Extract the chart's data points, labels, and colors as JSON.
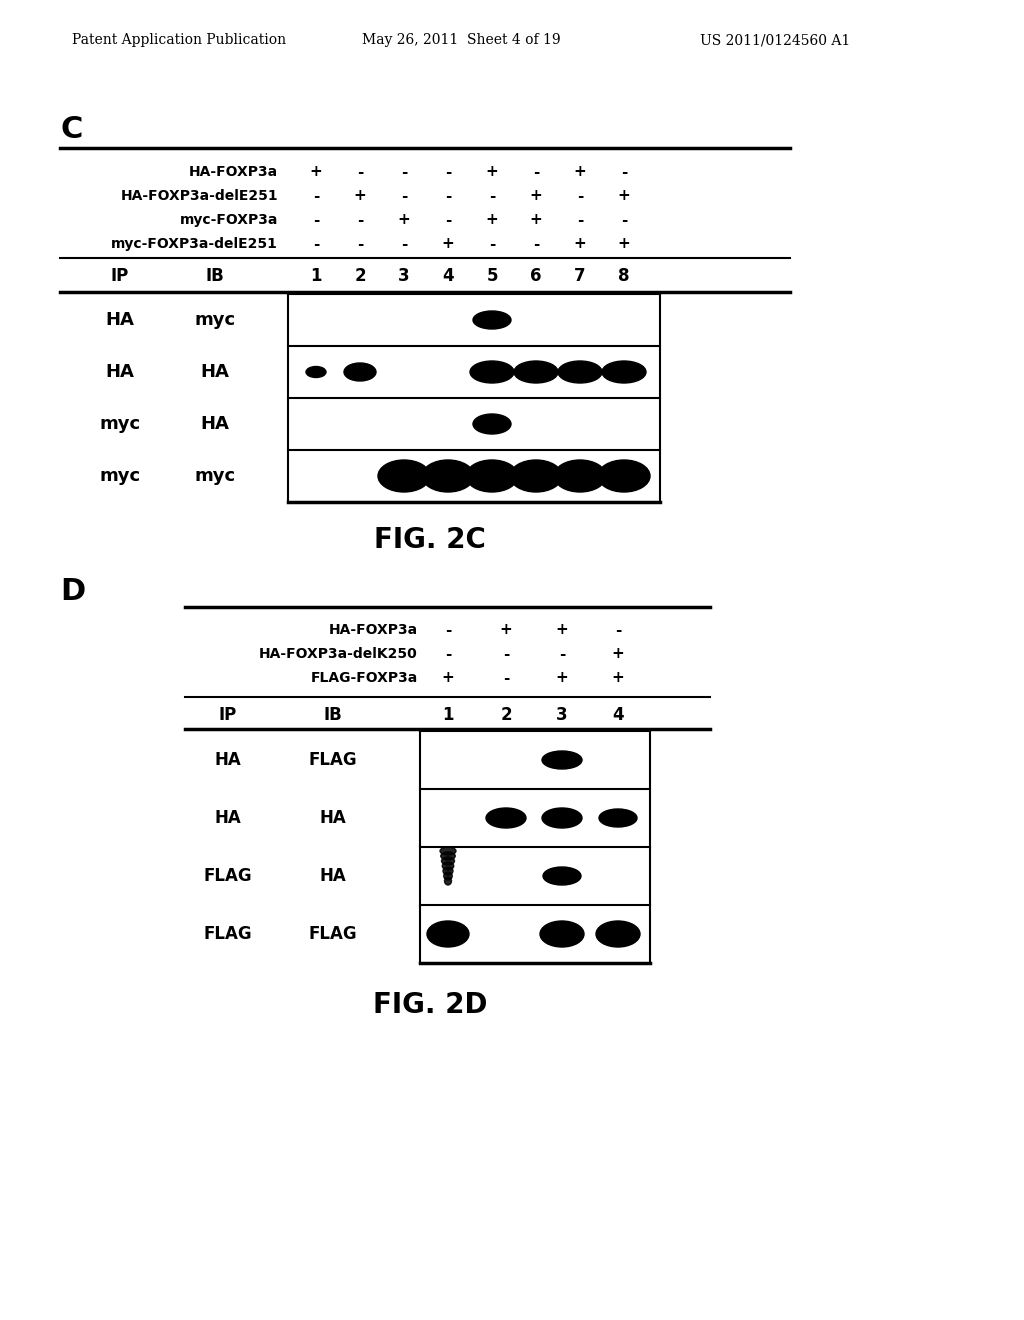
{
  "bg_color": "#ffffff",
  "header_left": "Patent Application Publication",
  "header_mid": "May 26, 2011  Sheet 4 of 19",
  "header_right": "US 2011/0124560 A1",
  "panel_C_label": "C",
  "panel_C_rows": [
    "HA-FOXP3a",
    "HA-FOXP3a-delE251",
    "myc-FOXP3a",
    "myc-FOXP3a-delE251"
  ],
  "panel_C_signs": [
    [
      "+",
      "-",
      "-",
      "-",
      "+",
      "-",
      "+",
      "-"
    ],
    [
      "-",
      "+",
      "-",
      "-",
      "-",
      "+",
      "-",
      "+"
    ],
    [
      "-",
      "-",
      "+",
      "-",
      "+",
      "+",
      "-",
      "-"
    ],
    [
      "-",
      "-",
      "-",
      "+",
      "-",
      "-",
      "+",
      "+"
    ]
  ],
  "panel_C_cols": [
    "1",
    "2",
    "3",
    "4",
    "5",
    "6",
    "7",
    "8"
  ],
  "panel_C_ip_ib": [
    [
      "HA",
      "myc"
    ],
    [
      "HA",
      "HA"
    ],
    [
      "myc",
      "HA"
    ],
    [
      "myc",
      "myc"
    ]
  ],
  "fig2c_label": "FIG. 2C",
  "panel_D_label": "D",
  "panel_D_rows": [
    "HA-FOXP3a",
    "HA-FOXP3a-delK250",
    "FLAG-FOXP3a"
  ],
  "panel_D_signs": [
    [
      "-",
      "+",
      "+",
      "-"
    ],
    [
      "-",
      "-",
      "-",
      "+"
    ],
    [
      "+",
      "-",
      "+",
      "+"
    ]
  ],
  "panel_D_cols": [
    "1",
    "2",
    "3",
    "4"
  ],
  "panel_D_ip_ib": [
    [
      "HA",
      "FLAG"
    ],
    [
      "HA",
      "HA"
    ],
    [
      "FLAG",
      "HA"
    ],
    [
      "FLAG",
      "FLAG"
    ]
  ],
  "fig2d_label": "FIG. 2D"
}
